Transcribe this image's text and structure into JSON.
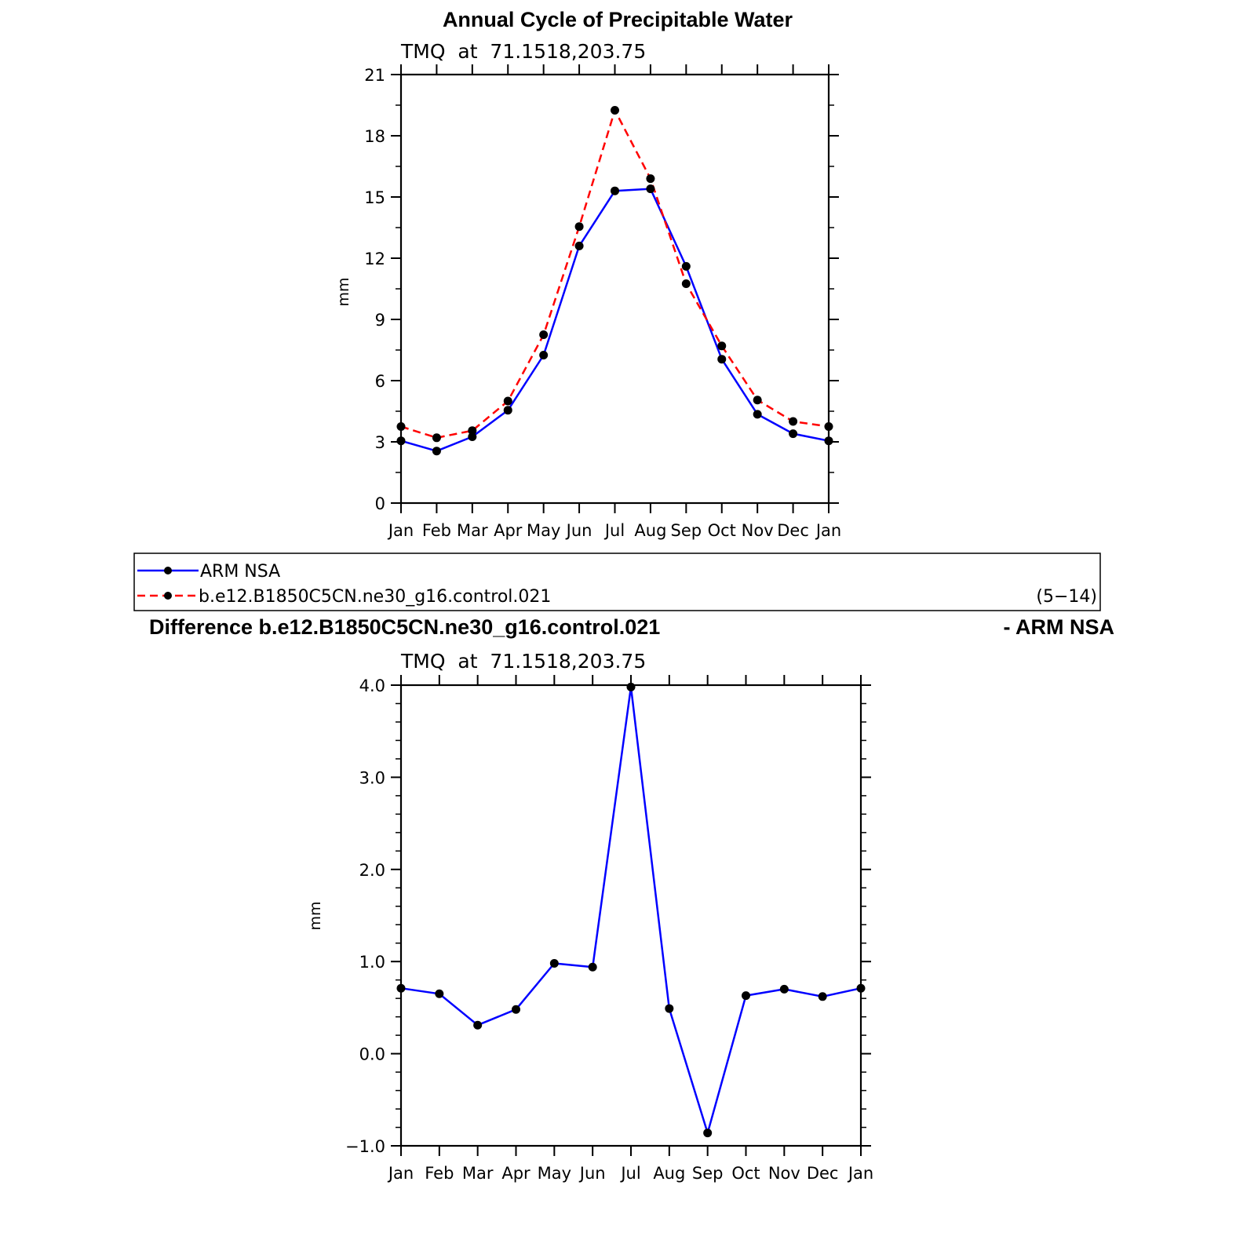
{
  "chart_data": [
    {
      "type": "line",
      "title": "Annual Cycle of Precipitable Water",
      "subtitle": "TMQ  at  71.1518,203.75",
      "xlabel": "",
      "ylabel": "mm",
      "categories": [
        "Jan",
        "Feb",
        "Mar",
        "Apr",
        "May",
        "Jun",
        "Jul",
        "Aug",
        "Sep",
        "Oct",
        "Nov",
        "Dec",
        "Jan"
      ],
      "ylim": [
        0,
        21
      ],
      "yticks": [
        "0",
        "3",
        "6",
        "9",
        "12",
        "15",
        "18",
        "21"
      ],
      "series": [
        {
          "name": "ARM NSA",
          "color": "#0000ff",
          "dash": "solid",
          "values": [
            3.05,
            2.55,
            3.25,
            4.55,
            7.25,
            12.6,
            15.3,
            15.4,
            11.6,
            7.05,
            4.35,
            3.4,
            3.05
          ]
        },
        {
          "name": "b.e12.B1850C5CN.ne30_g16.control.021",
          "color": "#ff0000",
          "dash": "dashed",
          "values": [
            3.75,
            3.2,
            3.55,
            5.0,
            8.25,
            13.55,
            19.25,
            15.9,
            10.75,
            7.7,
            5.05,
            4.0,
            3.75
          ]
        }
      ],
      "legend": {
        "placement": "below",
        "note": "(5−14)"
      }
    },
    {
      "type": "line",
      "title_left": "Difference b.e12.B1850C5CN.ne30_g16.control.021",
      "title_right": "- ARM NSA",
      "subtitle": "TMQ  at  71.1518,203.75",
      "xlabel": "",
      "ylabel": "mm",
      "categories": [
        "Jan",
        "Feb",
        "Mar",
        "Apr",
        "May",
        "Jun",
        "Jul",
        "Aug",
        "Sep",
        "Oct",
        "Nov",
        "Dec",
        "Jan"
      ],
      "ylim": [
        -1.0,
        4.0
      ],
      "yticks": [
        "−1.0",
        "0.0",
        "1.0",
        "2.0",
        "3.0",
        "4.0"
      ],
      "series": [
        {
          "color": "#0000ff",
          "dash": "solid",
          "values": [
            0.71,
            0.65,
            0.31,
            0.48,
            0.98,
            0.94,
            3.98,
            0.49,
            -0.86,
            0.63,
            0.7,
            0.62,
            0.71
          ]
        }
      ]
    }
  ]
}
